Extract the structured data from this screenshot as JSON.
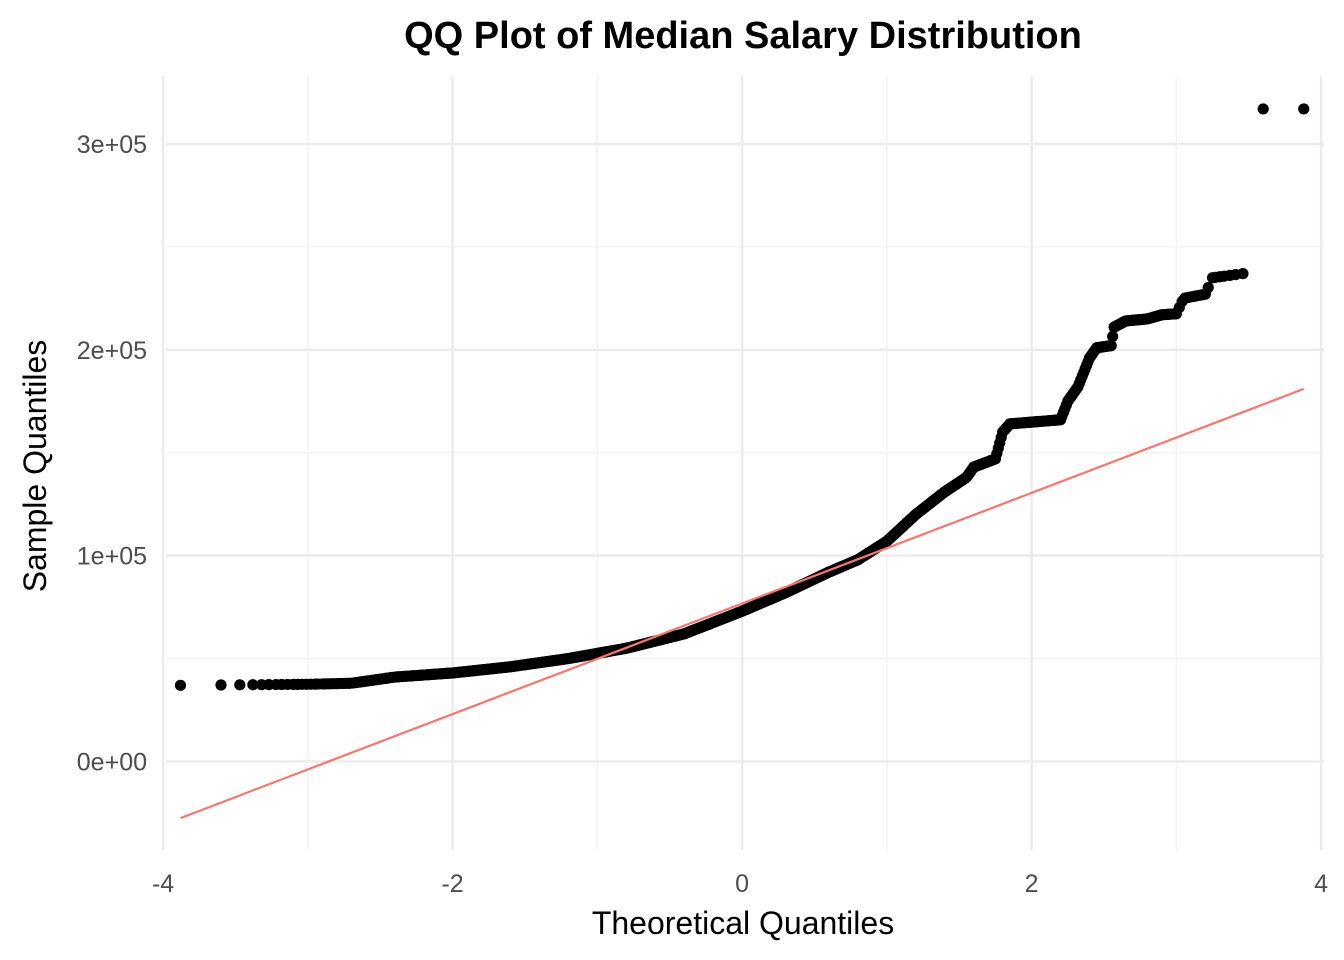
{
  "chart_data": {
    "type": "scatter",
    "title": "QQ Plot of Median Salary Distribution",
    "xlabel": "Theoretical Quantiles",
    "ylabel": "Sample Quantiles",
    "xlim": [
      -3.98,
      4.02
    ],
    "ylim": [
      -43000,
      333000
    ],
    "x_ticks": [
      {
        "value": -4,
        "label": "-4"
      },
      {
        "value": -2,
        "label": "-2"
      },
      {
        "value": 0,
        "label": "0"
      },
      {
        "value": 2,
        "label": "2"
      },
      {
        "value": 4,
        "label": "4"
      }
    ],
    "y_ticks": [
      {
        "value": 0,
        "label": "0e+00"
      },
      {
        "value": 100000,
        "label": "1e+05"
      },
      {
        "value": 200000,
        "label": "2e+05"
      },
      {
        "value": 300000,
        "label": "3e+05"
      }
    ],
    "x_minor_ticks": [
      -3,
      -1,
      1,
      3
    ],
    "y_minor_ticks": [
      50000,
      150000,
      250000
    ],
    "grid": true,
    "legend": "none",
    "reference_line": {
      "color": "#f8766d",
      "x": [
        -3.88,
        3.88
      ],
      "y": [
        -27500,
        181000
      ]
    },
    "points_color": "#000000",
    "series": [
      {
        "values_x": [
          -3.88,
          -3.6,
          -3.47,
          -3.38,
          -3.32,
          -3.27,
          -3.22,
          -3.18,
          -3.14,
          -3.1,
          -3.07,
          -3.04,
          -3.01,
          -2.98,
          -2.95,
          -2.93,
          -2.9,
          -2.88,
          -2.86,
          -2.84,
          -2.82,
          -2.8,
          -2.78,
          -2.76,
          -2.74,
          -2.72,
          -2.71,
          -2.69,
          -2.67,
          -2.66,
          -2.64,
          -2.62,
          -2.61,
          -2.59,
          -2.58,
          -2.56,
          -2.55,
          -2.53,
          -2.52,
          -2.5,
          -2.49,
          -2.47,
          -2.46,
          -2.45,
          -2.43,
          -2.42,
          -2.41,
          -2.39,
          -2.38,
          -2.37,
          -2.35,
          -2.34,
          -2.33,
          -2.32,
          -2.3,
          -2.29,
          -2.28,
          -2.27,
          -2.25,
          -2.24,
          -2.23,
          -2.22,
          -2.21,
          -2.2,
          -2.18,
          -2.17,
          -2.16,
          -2.15,
          -2.14,
          -2.13,
          -2.12,
          -2.11,
          -2.09,
          -2.08,
          -2.07,
          -2.06,
          -2.05,
          -2.04,
          -2.03,
          -2.02,
          -2.01,
          -2.0,
          -1.99,
          -1.98,
          -1.97,
          -1.96,
          -1.95,
          -1.94,
          -1.93,
          -1.92,
          -1.91,
          -1.9,
          -1.89,
          -1.88,
          -1.87,
          -1.86,
          -1.85,
          -1.84,
          -1.83,
          -1.82,
          -1.81,
          -1.8,
          -1.79,
          -1.78,
          -1.77,
          -1.76,
          -1.75,
          -1.74,
          -1.73,
          -1.72,
          -1.71,
          -1.7,
          -1.69,
          -1.68,
          -1.67,
          -1.66,
          -1.65,
          -1.64,
          -1.63,
          -1.62,
          -1.61,
          -1.6,
          -1.59,
          -1.58,
          -1.57,
          -1.56,
          -1.55,
          -1.54,
          -1.53,
          -1.52,
          -1.51,
          -1.5,
          -1.49,
          -1.48,
          -1.47,
          -1.46,
          -1.45,
          -1.44,
          -1.43,
          -1.42,
          -1.41,
          -1.4,
          -1.39,
          -1.38,
          -1.37,
          -1.36,
          -1.35,
          -1.34,
          -1.33,
          -1.32,
          -1.31,
          -1.3,
          -1.29,
          -1.28,
          -1.27,
          -1.26,
          -1.25,
          -1.24,
          -1.23,
          -1.22,
          -1.21,
          -1.2,
          -1.19,
          -1.18,
          -1.17,
          -1.16,
          -1.15,
          -1.14,
          -1.13,
          -1.12,
          -1.11,
          -1.1,
          -1.09,
          -1.08,
          -1.07,
          -1.06,
          -1.05,
          -1.04,
          -1.03,
          -1.02,
          -1.01,
          -1.0,
          -0.99,
          -0.98,
          -0.97,
          -0.96,
          -0.95,
          -0.94,
          -0.93,
          -0.92,
          -0.91,
          -0.9,
          -0.89,
          -0.88,
          -0.87,
          -0.86,
          -0.85,
          -0.84,
          -0.83,
          -0.82,
          -0.81,
          -0.8,
          -0.79,
          -0.78,
          -0.77,
          -0.76,
          -0.75,
          -0.74,
          -0.73,
          -0.72,
          -0.71,
          -0.7,
          -0.69,
          -0.68,
          -0.67,
          -0.66,
          -0.65,
          -0.64,
          -0.63,
          -0.62,
          -0.61,
          -0.6,
          -0.59,
          -0.58,
          -0.57,
          -0.56,
          -0.55,
          -0.54,
          -0.53,
          -0.52,
          -0.51,
          -0.5,
          -0.49,
          -0.48,
          -0.47,
          -0.46,
          -0.45,
          -0.44,
          -0.43,
          -0.42,
          -0.41,
          -0.4,
          -0.39,
          -0.38,
          -0.37,
          -0.36,
          -0.35,
          -0.34,
          -0.33,
          -0.32,
          -0.31,
          -0.3,
          -0.29,
          -0.28,
          -0.27,
          -0.26,
          -0.25,
          -0.24,
          -0.23,
          -0.22,
          -0.21,
          -0.2,
          -0.19,
          -0.18,
          -0.17,
          -0.16,
          -0.15,
          -0.14,
          -0.13,
          -0.12,
          -0.11,
          -0.1,
          -0.09,
          -0.08,
          -0.07,
          -0.06,
          -0.05,
          -0.04,
          -0.03,
          -0.02,
          -0.01,
          0.0,
          0.01,
          0.02,
          0.03,
          0.04,
          0.05,
          0.06,
          0.07,
          0.08,
          0.09,
          0.1,
          0.11,
          0.12,
          0.13,
          0.14,
          0.15,
          0.16,
          0.17,
          0.18,
          0.19,
          0.2,
          0.21,
          0.22,
          0.23,
          0.24,
          0.25,
          0.26,
          0.27,
          0.28,
          0.29,
          0.3,
          0.31,
          0.32,
          0.33,
          0.34,
          0.35,
          0.36,
          0.37,
          0.38,
          0.39,
          0.4,
          0.41,
          0.42,
          0.43,
          0.44,
          0.45,
          0.46,
          0.47,
          0.48,
          0.49,
          0.5,
          0.51,
          0.52,
          0.53,
          0.54,
          0.55,
          0.56,
          0.57,
          0.58,
          0.59,
          0.6,
          0.61,
          0.62,
          0.63,
          0.64,
          0.65,
          0.66,
          0.67,
          0.68,
          0.69,
          0.7,
          0.71,
          0.72,
          0.73,
          0.74,
          0.75,
          0.76,
          0.77,
          0.78,
          0.79,
          0.8,
          0.81,
          0.82,
          0.83,
          0.84,
          0.85,
          0.86,
          0.87,
          0.88,
          0.89,
          0.9,
          0.91,
          0.92,
          0.93,
          0.94,
          0.95,
          0.96,
          0.97,
          0.98,
          0.99,
          1.0,
          1.01,
          1.02,
          1.03,
          1.04,
          1.05,
          1.06,
          1.07,
          1.08,
          1.09,
          1.1,
          1.11,
          1.12,
          1.13,
          1.14,
          1.15,
          1.16,
          1.17,
          1.18,
          1.19,
          1.2,
          1.21,
          1.22,
          1.23,
          1.24,
          1.25,
          1.26,
          1.27,
          1.28,
          1.29,
          1.3,
          1.31,
          1.32,
          1.33,
          1.34,
          1.35,
          1.36,
          1.37,
          1.38,
          1.39,
          1.4,
          1.41,
          1.42,
          1.43,
          1.44,
          1.45,
          1.46,
          1.47,
          1.48,
          1.49,
          1.5,
          1.51,
          1.52,
          1.53,
          1.54,
          1.55,
          1.56,
          1.57,
          1.58,
          1.59,
          1.6,
          1.61,
          1.62,
          1.63,
          1.64,
          1.65,
          1.66,
          1.67,
          1.68,
          1.69,
          1.7,
          1.71,
          1.72,
          1.73,
          1.74,
          1.75,
          1.76,
          1.77,
          1.78,
          1.79,
          1.8,
          1.81,
          1.82,
          1.83,
          1.84,
          1.85,
          1.86,
          1.87,
          1.88,
          1.89,
          1.9,
          1.91,
          1.92,
          1.93,
          1.94,
          1.95,
          1.96,
          1.97,
          1.98,
          1.99,
          2.0,
          2.01,
          2.02,
          2.03,
          2.04,
          2.05,
          2.06,
          2.07,
          2.08,
          2.09,
          2.1,
          2.11,
          2.12,
          2.13,
          2.14,
          2.15,
          2.16,
          2.17,
          2.18,
          2.19,
          2.2,
          2.21,
          2.22,
          2.23,
          2.24,
          2.25,
          2.26,
          2.27,
          2.28,
          2.29,
          2.3,
          2.31,
          2.32,
          2.33,
          2.34,
          2.35,
          2.36,
          2.37,
          2.38,
          2.39,
          2.4,
          2.41,
          2.42,
          2.43,
          2.44,
          2.45,
          2.46,
          2.47,
          2.48,
          2.49,
          2.5,
          2.51,
          2.52,
          2.53,
          2.54,
          2.55,
          2.56,
          2.57,
          2.58,
          2.59,
          2.6,
          2.61,
          2.62,
          2.63,
          2.64,
          2.65,
          2.66,
          2.67,
          2.68,
          2.69,
          2.7,
          2.71,
          2.72,
          2.73,
          2.74,
          2.75,
          2.76,
          2.77,
          2.78,
          2.79,
          2.8,
          2.81,
          2.82,
          2.83,
          2.84,
          2.85,
          2.86,
          2.87,
          2.88,
          2.89,
          2.9,
          2.91,
          2.92,
          2.93,
          2.94,
          2.95,
          2.96,
          2.97,
          2.98,
          2.99,
          3.0,
          3.02,
          3.04,
          3.06,
          3.08,
          3.1,
          3.12,
          3.14,
          3.16,
          3.18,
          3.2,
          3.22,
          3.25,
          3.27,
          3.3,
          3.33,
          3.37,
          3.41,
          3.46,
          3.6,
          3.88
        ],
        "values_y_note": "computed"
      }
    ]
  }
}
